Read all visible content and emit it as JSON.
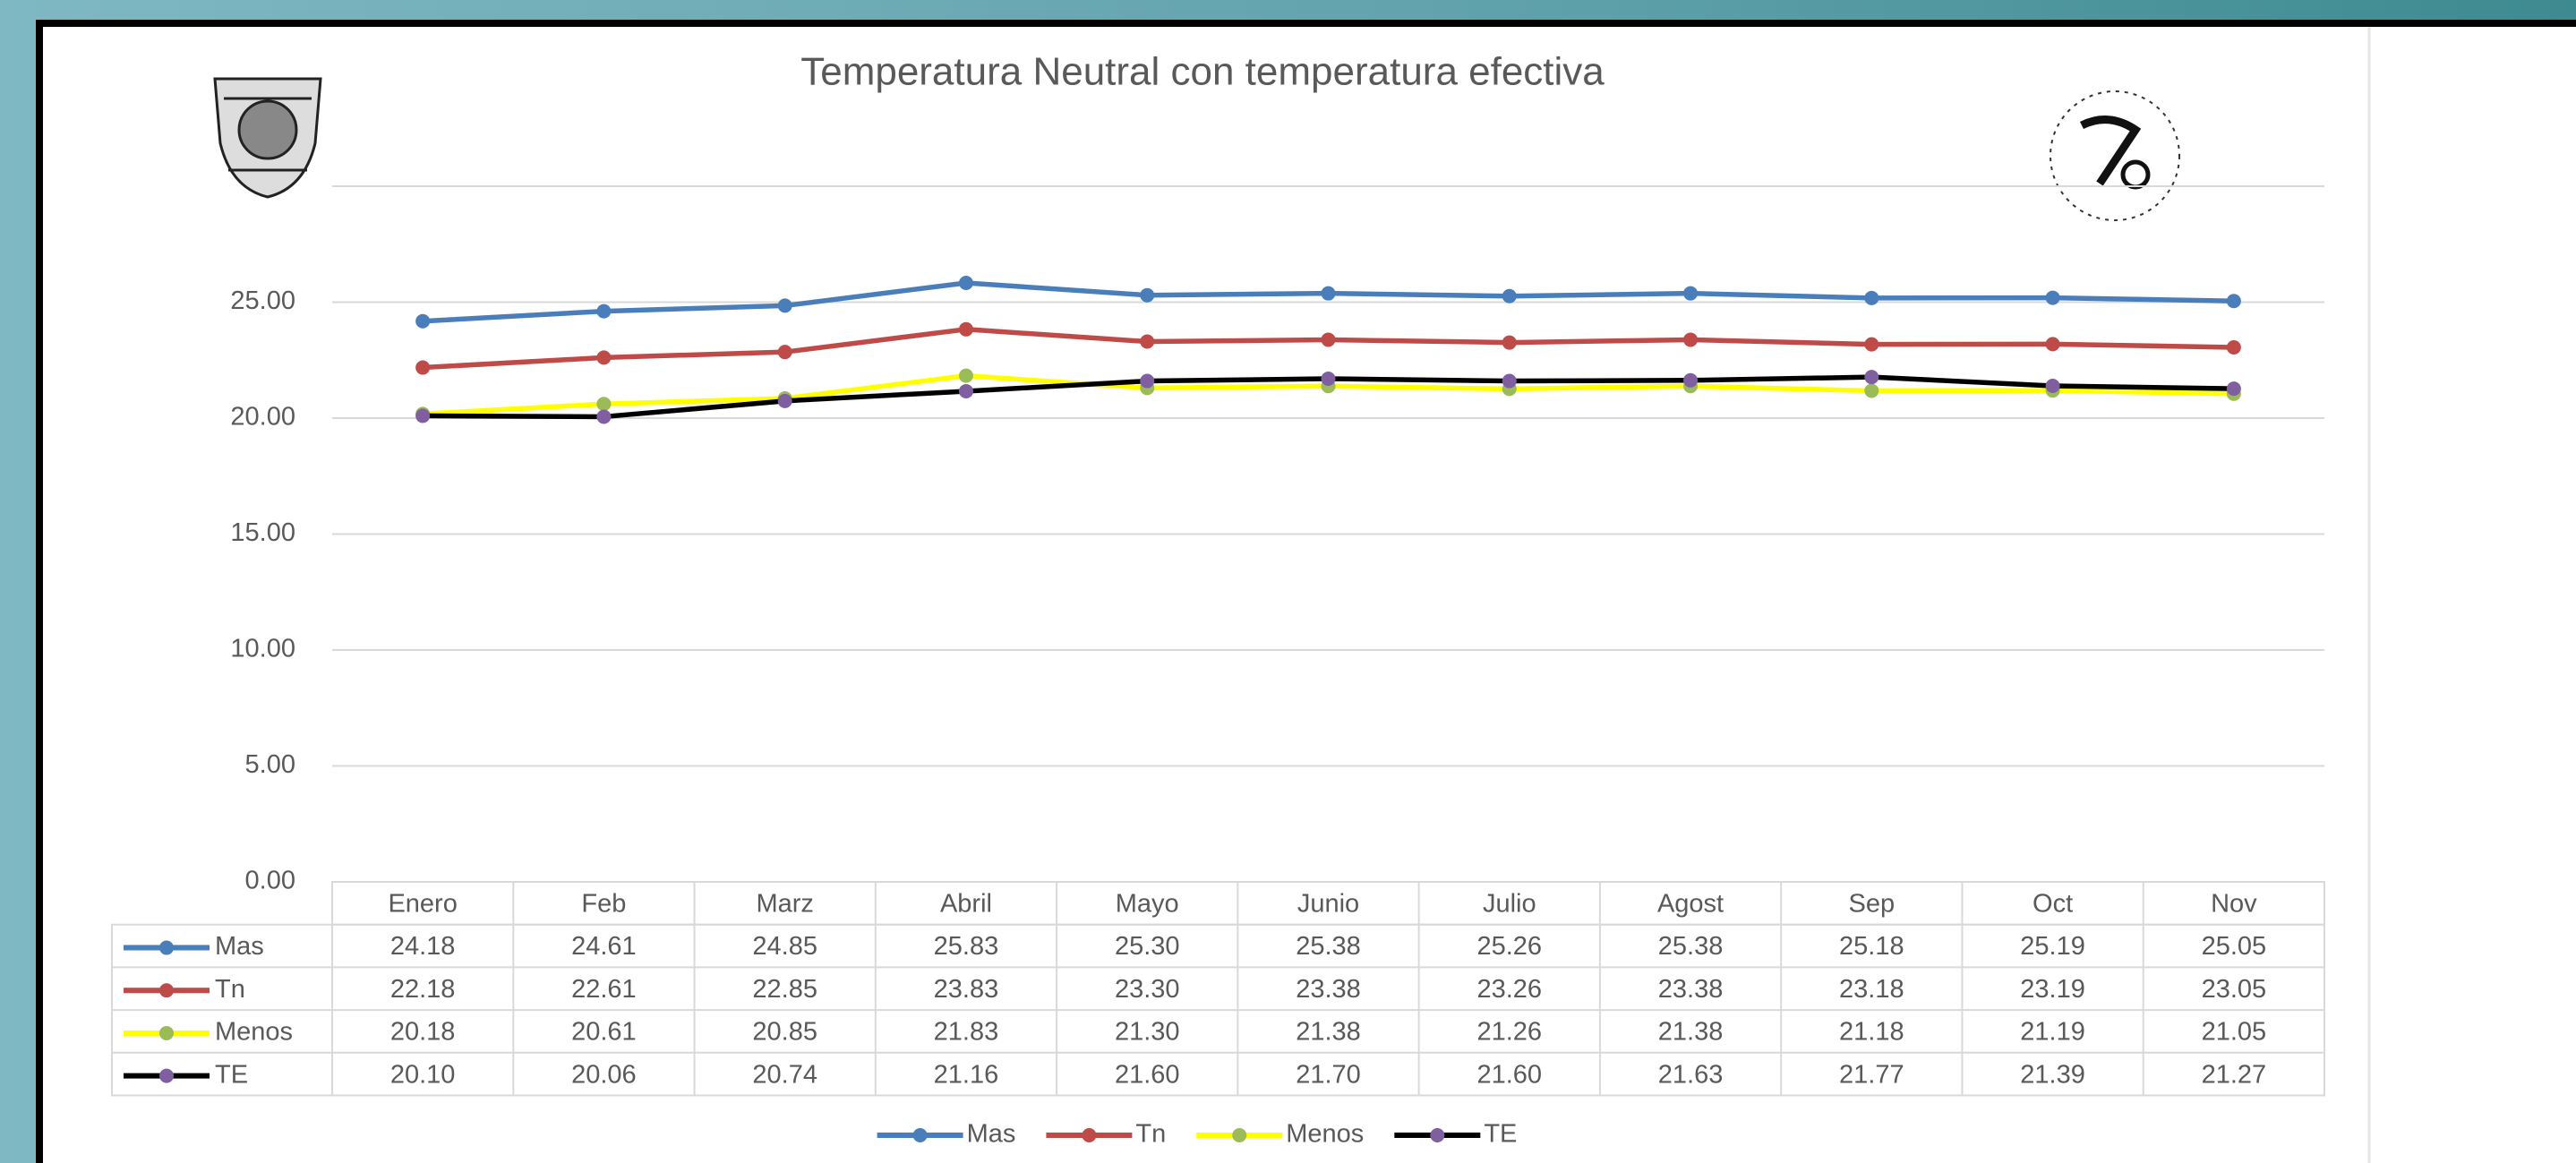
{
  "chart_data": {
    "type": "line",
    "title": "Temperatura Neutral con temperatura efectiva",
    "categories": [
      "Enero",
      "Feb",
      "Marz",
      "Abril",
      "Mayo",
      "Junio",
      "Julio",
      "Agost",
      "Sep",
      "Oct",
      "Nov"
    ],
    "series": [
      {
        "name": "Mas",
        "color": "#4a7ebb",
        "marker_color": "#4a7ebb",
        "values": [
          24.18,
          24.61,
          24.85,
          25.83,
          25.3,
          25.38,
          25.26,
          25.38,
          25.18,
          25.19,
          25.05
        ],
        "value_labels": [
          "24.18",
          "24.61",
          "24.85",
          "25.83",
          "25.30",
          "25.38",
          "25.26",
          "25.38",
          "25.18",
          "25.19",
          "25.05"
        ]
      },
      {
        "name": "Tn",
        "color": "#be4b48",
        "marker_color": "#be4b48",
        "values": [
          22.18,
          22.61,
          22.85,
          23.83,
          23.3,
          23.38,
          23.26,
          23.38,
          23.18,
          23.19,
          23.05
        ],
        "value_labels": [
          "22.18",
          "22.61",
          "22.85",
          "23.83",
          "23.30",
          "23.38",
          "23.26",
          "23.38",
          "23.18",
          "23.19",
          "23.05"
        ]
      },
      {
        "name": "Menos",
        "color": "#ffff00",
        "marker_color": "#9bbb59",
        "values": [
          20.18,
          20.61,
          20.85,
          21.83,
          21.3,
          21.38,
          21.26,
          21.38,
          21.18,
          21.19,
          21.05
        ],
        "value_labels": [
          "20.18",
          "20.61",
          "20.85",
          "21.83",
          "21.30",
          "21.38",
          "21.26",
          "21.38",
          "21.18",
          "21.19",
          "21.05"
        ]
      },
      {
        "name": "TE",
        "color": "#000000",
        "marker_color": "#7f5f9f",
        "values": [
          20.1,
          20.06,
          20.74,
          21.16,
          21.6,
          21.7,
          21.6,
          21.63,
          21.77,
          21.39,
          21.27
        ],
        "value_labels": [
          "20.10",
          "20.06",
          "20.74",
          "21.16",
          "21.60",
          "21.70",
          "21.60",
          "21.63",
          "21.77",
          "21.39",
          "21.27"
        ]
      }
    ],
    "ylim": [
      0,
      30
    ],
    "yticks": [
      {
        "value": 0,
        "label": "0.00"
      },
      {
        "value": 5,
        "label": "5.00"
      },
      {
        "value": 10,
        "label": "10.00"
      },
      {
        "value": 15,
        "label": "15.00"
      },
      {
        "value": 20,
        "label": "20.00"
      },
      {
        "value": 25,
        "label": "25.00"
      }
    ],
    "grid": true,
    "legend": "bottom"
  }
}
